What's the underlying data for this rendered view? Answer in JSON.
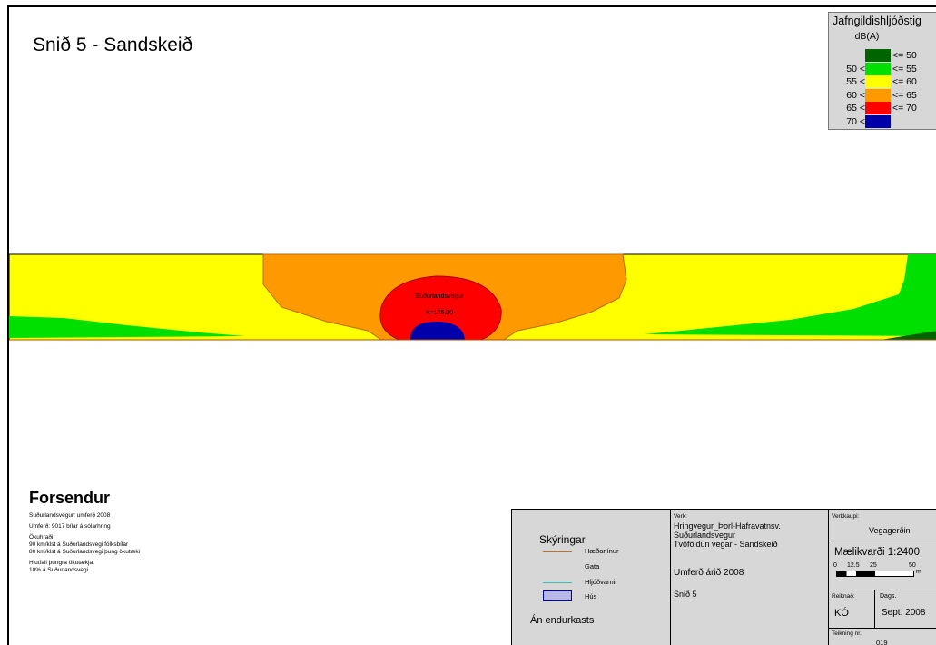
{
  "title": "Snið 5 - Sandskeið",
  "legend": {
    "title": "Jafngildishljóðstig",
    "subtitle": "dB(A)",
    "rows": [
      {
        "low": "",
        "high": "<= 50",
        "color": "#006400"
      },
      {
        "low": "50 <",
        "high": "<= 55",
        "color": "#00e000"
      },
      {
        "low": "55 <",
        "high": "<= 60",
        "color": "#ffff00"
      },
      {
        "low": "60 <",
        "high": "<= 65",
        "color": "#ff9900"
      },
      {
        "low": "65 <",
        "high": "<= 70",
        "color": "#ff0000"
      },
      {
        "low": "70 <",
        "high": "",
        "color": "#0000aa"
      }
    ]
  },
  "map": {
    "road_label": "Suðurlandsvegur",
    "station_label": "K=175.00"
  },
  "forsendur": {
    "heading": "Forsendur",
    "lines": [
      "Suðurlandsvegur: umferð 2008",
      "",
      "Umferð: 9017 bílar á sólarhring",
      "",
      "Ökuhraði:",
      "90 km/klst á Suðurlandsvegi fólksbílar",
      "80 km/klst á Suðurlandsvegi þung ökutæki",
      "",
      "Hlutfall þungra ökutækja:",
      "10% á Suðurlandsvegi"
    ]
  },
  "titleblock": {
    "skyringar": "Skýringar",
    "legend_items": [
      "Hæðarlínur",
      "Gata",
      "Hljóðvarnir",
      "Hús"
    ],
    "an_endurkasts": "Án endurkasts",
    "verk_label": "Verk:",
    "verk_lines": [
      "Hringvegur_Þorl-Hafravatnsv.",
      "Suðurlandsvegur",
      "Tvöföldun vegar - Sandskeið"
    ],
    "umferd": "Umferð árið 2008",
    "snid": "Snið 5",
    "verkkaupi_label": "Verkkaupi:",
    "verkkaupi": "Vegagerðin",
    "scale": "Mælikvarði 1:2400",
    "scale_ticks": [
      "0",
      "12.5",
      "25",
      "50"
    ],
    "scale_unit": "m",
    "reiknad_label": "Reiknað:",
    "reiknad": "KÓ",
    "dags_label": "Dags.",
    "dags": "Sept. 2008",
    "teikning_label": "Teikning nr.",
    "teikning": "019"
  }
}
